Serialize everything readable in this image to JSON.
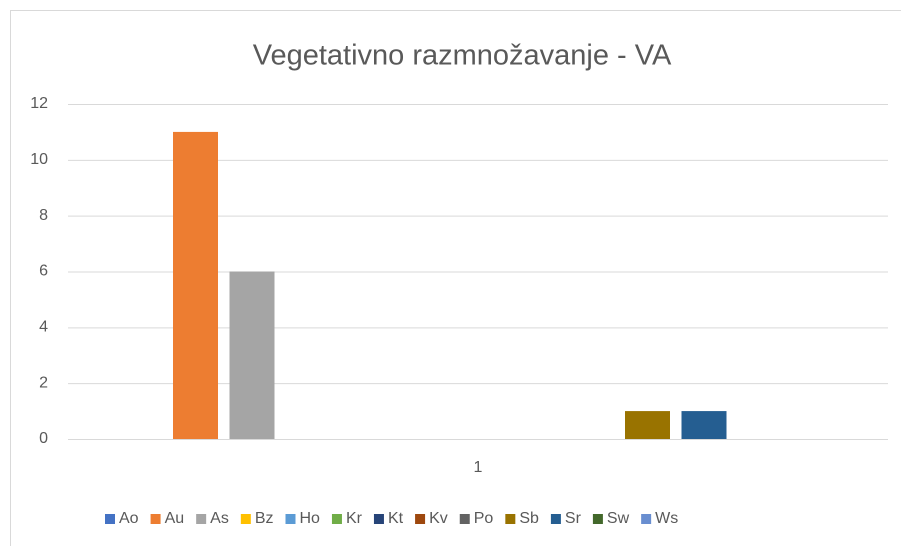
{
  "chart_data": {
    "type": "bar",
    "title": "Vegetativno razmnožavanje - VA",
    "categories": [
      "1"
    ],
    "series": [
      {
        "name": "Ao",
        "color": "#4472c4",
        "values": [
          0
        ]
      },
      {
        "name": "Au",
        "color": "#ed7d31",
        "values": [
          11
        ]
      },
      {
        "name": "As",
        "color": "#a5a5a5",
        "values": [
          6
        ]
      },
      {
        "name": "Bz",
        "color": "#ffc000",
        "values": [
          0
        ]
      },
      {
        "name": "Ho",
        "color": "#5b9bd5",
        "values": [
          0
        ]
      },
      {
        "name": "Kr",
        "color": "#70ad47",
        "values": [
          0
        ]
      },
      {
        "name": "Kt",
        "color": "#264478",
        "values": [
          0
        ]
      },
      {
        "name": "Kv",
        "color": "#9e480e",
        "values": [
          0
        ]
      },
      {
        "name": "Po",
        "color": "#636363",
        "values": [
          0
        ]
      },
      {
        "name": "Sb",
        "color": "#997300",
        "values": [
          1
        ]
      },
      {
        "name": "Sr",
        "color": "#255e91",
        "values": [
          1
        ]
      },
      {
        "name": "Sw",
        "color": "#43682b",
        "values": [
          0
        ]
      },
      {
        "name": "Ws",
        "color": "#698ed0",
        "values": [
          0
        ]
      }
    ],
    "ylim": [
      0,
      12
    ],
    "yticks": [
      0,
      2,
      4,
      6,
      8,
      10,
      12
    ],
    "grid": true,
    "legend": "bottom"
  }
}
